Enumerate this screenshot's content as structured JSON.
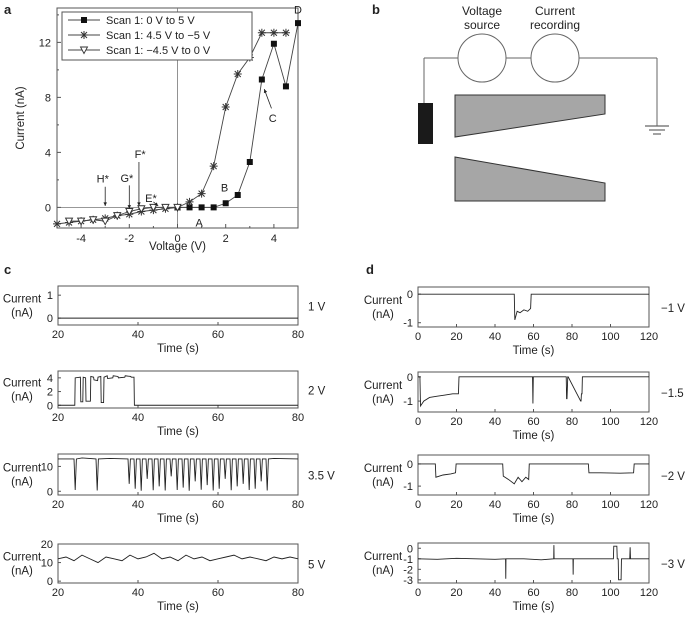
{
  "panel_labels": [
    "a",
    "b",
    "c",
    "d"
  ],
  "diagram": {
    "voltage_source_label": [
      "Voltage",
      "source"
    ],
    "current_recording_label": [
      "Current",
      "recording"
    ]
  },
  "chart_data": [
    {
      "id": "a",
      "type": "scatter",
      "xlabel": "Voltage (V)",
      "ylabel": "Current (nA)",
      "xlim": [
        -5,
        5
      ],
      "ylim": [
        -1.5,
        14.5
      ],
      "xticks": [
        -4,
        -2,
        0,
        2,
        4
      ],
      "yticks": [
        0,
        4,
        8,
        12
      ],
      "legend_position": "top-left",
      "series": [
        {
          "name": "Scan 1: 0 V to 5 V",
          "marker": "square-filled",
          "x": [
            0,
            0.5,
            1,
            1.5,
            2,
            2.5,
            3,
            3.5,
            4,
            4.5,
            5
          ],
          "y": [
            0,
            0,
            0,
            0,
            0.3,
            0.9,
            3.3,
            9.3,
            11.9,
            8.8,
            13.4
          ]
        },
        {
          "name": "Scan 1: 4.5 V to −5 V",
          "marker": "asterisk",
          "x": [
            4.5,
            4,
            3.5,
            3,
            2.5,
            2,
            1.5,
            1,
            0.5,
            0,
            -0.5,
            -1,
            -1.5,
            -2,
            -2.5,
            -3,
            -3.5,
            -4,
            -4.5,
            -5
          ],
          "y": [
            12.7,
            12.7,
            12.7,
            10.9,
            9.7,
            7.3,
            3.0,
            1.0,
            0.4,
            0,
            -0.1,
            -0.2,
            -0.3,
            -0.5,
            -0.6,
            -0.8,
            -0.9,
            -1.0,
            -1.1,
            -1.2
          ]
        },
        {
          "name": "Scan 1: −4.5 V to 0 V",
          "marker": "triangle-open",
          "x": [
            -4.5,
            -4,
            -3.5,
            -3,
            -2.5,
            -2,
            -1.5,
            -1,
            -0.5,
            0
          ],
          "y": [
            -1.0,
            -1.0,
            -0.9,
            -1.0,
            -0.6,
            -0.3,
            -0.1,
            0,
            0,
            0
          ]
        }
      ],
      "annotations": [
        {
          "text": "A",
          "x": 0.9,
          "y": -1.1
        },
        {
          "text": "B",
          "x": 1.95,
          "y": 1.45
        },
        {
          "text": "C",
          "x": 3.95,
          "y": 6.5
        },
        {
          "text": "D",
          "x": 5.0,
          "y": 14.4
        },
        {
          "text": "E*",
          "x": -1.1,
          "y": 0.7
        },
        {
          "text": "F*",
          "x": -1.55,
          "y": 3.9
        },
        {
          "text": "G*",
          "x": -2.1,
          "y": 2.15
        },
        {
          "text": "H*",
          "x": -3.1,
          "y": 2.1
        }
      ]
    },
    {
      "id": "c1",
      "type": "line",
      "voltage_label": "1 V",
      "xlabel": "Time (s)",
      "ylabel": "Current (nA)",
      "xlim": [
        20,
        80
      ],
      "ylim": [
        -0.3,
        1.4
      ],
      "xticks": [
        20,
        40,
        60,
        80
      ],
      "yticks": [
        0,
        1
      ],
      "x": [
        20,
        80
      ],
      "y": [
        0,
        0
      ]
    },
    {
      "id": "c2",
      "type": "line",
      "voltage_label": "2 V",
      "xlabel": "Time (s)",
      "ylabel": "Current (nA)",
      "xlim": [
        20,
        80
      ],
      "ylim": [
        -0.4,
        5
      ],
      "xticks": [
        20,
        40,
        60,
        80
      ],
      "yticks": [
        0,
        2,
        4
      ],
      "x": [
        20,
        24.2,
        24.3,
        25.6,
        25.7,
        26.2,
        26.3,
        26.9,
        27,
        28.1,
        28.2,
        28.9,
        29,
        29.9,
        30,
        30.7,
        30.8,
        31.4,
        31.5,
        32.3,
        32.4,
        33.7,
        33.8,
        35,
        35.1,
        36.7,
        36.8,
        38.2,
        38.3,
        39,
        39.1,
        80
      ],
      "y": [
        0,
        0,
        4.0,
        4.1,
        0.5,
        0.5,
        4.1,
        4.0,
        0.6,
        0.6,
        4.2,
        4.1,
        3.7,
        3.6,
        4.1,
        4.2,
        0.4,
        0.4,
        4.1,
        4.3,
        3.9,
        4.0,
        4.3,
        4.2,
        4.0,
        4.1,
        4.3,
        4.2,
        4.1,
        4.1,
        0,
        0
      ]
    },
    {
      "id": "c3",
      "type": "line",
      "voltage_label": "3.5 V",
      "xlabel": "Time (s)",
      "ylabel": "Current (nA)",
      "xlim": [
        20,
        80
      ],
      "ylim": [
        -1.5,
        15
      ],
      "xticks": [
        20,
        40,
        60,
        80
      ],
      "yticks": [
        0,
        10
      ],
      "x": [
        20,
        24,
        24.3,
        24.6,
        26,
        29.5,
        29.8,
        30.1,
        33,
        37.5,
        37.8,
        38.1,
        39,
        39.3,
        39.6,
        40.5,
        40.8,
        41.1,
        42,
        42.3,
        42.6,
        43.5,
        43.8,
        44.1,
        45,
        45.3,
        45.6,
        46.5,
        46.8,
        47.1,
        48,
        48.3,
        48.6,
        49.5,
        49.8,
        50.1,
        51,
        51.3,
        51.6,
        52.5,
        52.8,
        53.1,
        54,
        54.3,
        54.6,
        55.5,
        55.8,
        56.1,
        57,
        57.3,
        57.6,
        58.5,
        58.8,
        59.1,
        60,
        60.3,
        60.6,
        61.5,
        61.8,
        62.1,
        63,
        63.3,
        63.6,
        64.5,
        64.8,
        65.1,
        66,
        66.3,
        66.6,
        67.5,
        67.8,
        68.1,
        69,
        69.3,
        69.6,
        70.5,
        70.8,
        71.1,
        72,
        72.3,
        72.6,
        74,
        80
      ],
      "y": [
        13,
        13,
        0.5,
        13,
        13.4,
        13,
        0.3,
        13,
        13.2,
        13,
        3,
        13,
        13,
        1,
        13,
        13,
        0.2,
        13,
        13,
        5,
        13,
        13,
        0.4,
        13,
        13,
        2,
        13,
        13,
        0.3,
        13,
        13,
        6,
        13,
        13,
        0.5,
        13,
        13,
        1.5,
        13,
        13,
        0.2,
        13,
        13,
        4,
        13,
        13,
        0.6,
        13,
        13,
        2.5,
        13,
        13,
        0.3,
        13,
        13,
        1,
        13,
        13,
        5,
        13,
        13,
        0.4,
        13,
        13,
        2,
        13,
        13,
        3,
        13,
        13,
        0.5,
        13,
        13,
        1,
        13,
        13,
        4,
        13,
        13,
        0.3,
        13,
        13.2,
        13
      ]
    },
    {
      "id": "c4",
      "type": "line",
      "voltage_label": "5 V",
      "xlabel": "Time (s)",
      "ylabel": "Current (nA)",
      "xlim": [
        20,
        80
      ],
      "ylim": [
        -1,
        20
      ],
      "xticks": [
        20,
        40,
        60,
        80
      ],
      "yticks": [
        0,
        10,
        20
      ],
      "x": [
        20,
        22,
        24,
        26,
        28,
        30,
        32,
        34,
        36,
        38,
        40,
        42,
        44,
        46,
        48,
        50,
        52,
        54,
        56,
        58,
        60,
        62,
        64,
        66,
        68,
        70,
        72,
        74,
        76,
        78,
        80
      ],
      "y": [
        12,
        13,
        11,
        14,
        12,
        10,
        13,
        12,
        11,
        14,
        12,
        13,
        15,
        12,
        13,
        11,
        14,
        12,
        13,
        11,
        12,
        13,
        14,
        12,
        13,
        12,
        11,
        13,
        12,
        13,
        12
      ]
    },
    {
      "id": "d1",
      "type": "line",
      "voltage_label": "−1 V",
      "xlabel": "Time (s)",
      "ylabel": "Current (nA)",
      "xlim": [
        0,
        120
      ],
      "ylim": [
        -1.15,
        0.25
      ],
      "xticks": [
        0,
        20,
        40,
        60,
        80,
        100,
        120
      ],
      "yticks": [
        -1,
        0
      ],
      "x": [
        0,
        50,
        50.3,
        51.5,
        53,
        55,
        57,
        58.5,
        58.8,
        120
      ],
      "y": [
        0,
        0,
        -0.9,
        -0.6,
        -0.65,
        -0.55,
        -0.6,
        -0.5,
        0,
        0
      ]
    },
    {
      "id": "d2",
      "type": "line",
      "voltage_label": "−1.5 V",
      "xlabel": "Time (s)",
      "ylabel": "Current (nA)",
      "xlim": [
        0,
        120
      ],
      "ylim": [
        -1.45,
        0.2
      ],
      "xticks": [
        0,
        20,
        40,
        60,
        80,
        100,
        120
      ],
      "yticks": [
        -1,
        0
      ],
      "x": [
        0,
        1,
        1.3,
        3,
        6,
        10,
        14,
        18,
        21,
        21.3,
        59.5,
        59.7,
        59.9,
        77,
        77.2,
        77.4,
        77.8,
        78,
        84.5,
        84.7,
        84.9,
        85.2,
        85.4,
        120
      ],
      "y": [
        0,
        0,
        -1.2,
        -1.0,
        -0.85,
        -0.8,
        -0.75,
        -0.7,
        -0.7,
        0,
        0,
        -1.1,
        0,
        0,
        -0.9,
        -0.9,
        0,
        0,
        -1.0,
        -1.0,
        -0.7,
        -0.7,
        0,
        0
      ]
    },
    {
      "id": "d3",
      "type": "line",
      "voltage_label": "−2 V",
      "xlabel": "Time (s)",
      "ylabel": "Current (nA)",
      "xlim": [
        0,
        120
      ],
      "ylim": [
        -1.4,
        0.4
      ],
      "xticks": [
        0,
        20,
        40,
        60,
        80,
        100,
        120
      ],
      "yticks": [
        -1,
        0
      ],
      "x": [
        0,
        9,
        9.3,
        13,
        17,
        19.5,
        19.8,
        44,
        44.3,
        47,
        50,
        52,
        54,
        56,
        57.5,
        57.8,
        88.5,
        88.8,
        95,
        105,
        112,
        112.3,
        120
      ],
      "y": [
        0,
        0,
        -0.6,
        -0.5,
        -0.45,
        -0.4,
        0,
        0,
        -0.55,
        -0.7,
        -0.9,
        -0.6,
        -0.8,
        -0.6,
        -0.7,
        0,
        0,
        -0.4,
        -0.4,
        -0.42,
        -0.4,
        0,
        0
      ]
    },
    {
      "id": "d4",
      "type": "line",
      "voltage_label": "−3 V",
      "xlabel": "Time (s)",
      "ylabel": "Current (nA)",
      "xlim": [
        0,
        120
      ],
      "ylim": [
        -3.3,
        0.5
      ],
      "xticks": [
        0,
        20,
        40,
        60,
        80,
        100,
        120
      ],
      "yticks": [
        -3,
        -2,
        -1,
        0
      ],
      "x": [
        0,
        10,
        20,
        30,
        40,
        45.5,
        45.6,
        45.7,
        55,
        64,
        70.5,
        70.6,
        70.7,
        80.5,
        80.6,
        80.7,
        90,
        100,
        101.5,
        101.7,
        103.3,
        103.5,
        104,
        104.2,
        105.5,
        105.7,
        110,
        110.2,
        110.4,
        115,
        120
      ],
      "y": [
        -1,
        -1.05,
        -0.95,
        -1.0,
        -1.05,
        -1.0,
        -2.9,
        -1.0,
        -1.0,
        -1.1,
        -1.0,
        0.3,
        -1.0,
        -1.0,
        -2.5,
        -1.0,
        -1.0,
        -1.0,
        -1.0,
        0.2,
        0.2,
        -1.0,
        -1.0,
        -3.0,
        -3.0,
        -1.0,
        -1.0,
        0.1,
        -1.0,
        -1.0,
        -1.0
      ]
    }
  ]
}
